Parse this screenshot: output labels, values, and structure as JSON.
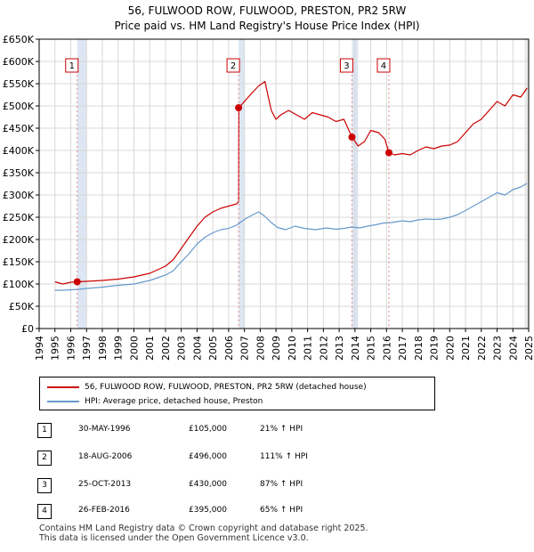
{
  "chart_data": {
    "type": "line",
    "title": "56, FULWOOD ROW, FULWOOD, PRESTON, PR2 5RW",
    "subtitle": "Price paid vs. HM Land Registry's House Price Index (HPI)",
    "xlim": [
      1994,
      2025
    ],
    "ylim": [
      0,
      650000
    ],
    "x_ticks": [
      1994,
      1995,
      1996,
      1997,
      1998,
      1999,
      2000,
      2001,
      2002,
      2003,
      2004,
      2005,
      2006,
      2007,
      2008,
      2009,
      2010,
      2011,
      2012,
      2013,
      2014,
      2015,
      2016,
      2017,
      2018,
      2019,
      2020,
      2021,
      2022,
      2023,
      2024,
      2025
    ],
    "x_tick_labels": [
      "1994",
      "1995",
      "1996",
      "1997",
      "1998",
      "1999",
      "2000",
      "2001",
      "2002",
      "2003",
      "2004",
      "2005",
      "2006",
      "2007",
      "2008",
      "2009",
      "2010",
      "2011",
      "2012",
      "2013",
      "2014",
      "2015",
      "2016",
      "2017",
      "2018",
      "2019",
      "2020",
      "2021",
      "2022",
      "2023",
      "2024",
      "2025"
    ],
    "y_ticks": [
      0,
      50000,
      100000,
      150000,
      200000,
      250000,
      300000,
      350000,
      400000,
      450000,
      500000,
      550000,
      600000,
      650000
    ],
    "y_tick_labels": [
      "£0",
      "£50K",
      "£100K",
      "£150K",
      "£200K",
      "£250K",
      "£300K",
      "£350K",
      "£400K",
      "£450K",
      "£500K",
      "£550K",
      "£600K",
      "£650K"
    ],
    "grid": true,
    "colors": {
      "property": "#cc0000",
      "hpi": "#6699cc",
      "shade": "#dde6f2",
      "marker_line": "#e07070"
    },
    "series": [
      {
        "name": "56, FULWOOD ROW, FULWOOD, PRESTON, PR2 5RW (detached house)",
        "color": "#cc0000",
        "x": [
          1995.0,
          1995.5,
          1996.0,
          1996.41,
          1997.0,
          1998.0,
          1999.0,
          2000.0,
          2001.0,
          2002.0,
          2002.5,
          2003.0,
          2003.5,
          2004.0,
          2004.5,
          2005.0,
          2005.5,
          2006.0,
          2006.5,
          2006.63,
          2006.65,
          2007.0,
          2007.5,
          2007.9,
          2008.3,
          2008.7,
          2009.0,
          2009.3,
          2009.8,
          2010.3,
          2010.8,
          2011.3,
          2011.8,
          2012.3,
          2012.8,
          2013.3,
          2013.81,
          2014.2,
          2014.6,
          2015.0,
          2015.5,
          2015.9,
          2016.15,
          2016.5,
          2017.0,
          2017.5,
          2018.0,
          2018.5,
          2019.0,
          2019.5,
          2020.0,
          2020.5,
          2021.0,
          2021.5,
          2022.0,
          2022.5,
          2023.0,
          2023.5,
          2024.0,
          2024.5,
          2024.9
        ],
        "values": [
          105000,
          100000,
          104000,
          105000,
          106000,
          108000,
          111000,
          116000,
          124000,
          140000,
          155000,
          180000,
          205000,
          230000,
          250000,
          262000,
          270000,
          275000,
          280000,
          285000,
          496000,
          510000,
          530000,
          545000,
          555000,
          490000,
          470000,
          480000,
          490000,
          480000,
          470000,
          485000,
          480000,
          475000,
          465000,
          470000,
          430000,
          410000,
          420000,
          445000,
          440000,
          425000,
          395000,
          390000,
          393000,
          390000,
          400000,
          408000,
          404000,
          410000,
          412000,
          420000,
          440000,
          460000,
          470000,
          490000,
          510000,
          500000,
          525000,
          520000,
          540000
        ]
      },
      {
        "name": "HPI: Average price, detached house, Preston",
        "color": "#6699cc",
        "x": [
          1995.0,
          1995.5,
          1996.0,
          1996.5,
          1997.0,
          1998.0,
          1999.0,
          2000.0,
          2001.0,
          2002.0,
          2002.5,
          2003.0,
          2003.5,
          2004.0,
          2004.5,
          2005.0,
          2005.5,
          2006.0,
          2006.5,
          2007.0,
          2007.5,
          2007.9,
          2008.3,
          2008.7,
          2009.1,
          2009.6,
          2010.2,
          2010.8,
          2011.5,
          2012.2,
          2012.8,
          2013.3,
          2013.8,
          2014.3,
          2014.8,
          2015.3,
          2015.8,
          2016.3,
          2017.0,
          2017.5,
          2018.0,
          2018.5,
          2019.0,
          2019.5,
          2020.0,
          2020.5,
          2021.0,
          2021.5,
          2022.0,
          2022.5,
          2023.0,
          2023.5,
          2024.0,
          2024.5,
          2024.9
        ],
        "values": [
          86000,
          86000,
          87000,
          88000,
          90000,
          93000,
          97000,
          100000,
          108000,
          120000,
          130000,
          150000,
          168000,
          190000,
          205000,
          215000,
          222000,
          225000,
          232000,
          245000,
          255000,
          262000,
          252000,
          238000,
          227000,
          222000,
          230000,
          225000,
          222000,
          226000,
          223000,
          225000,
          228000,
          226000,
          230000,
          233000,
          237000,
          238000,
          242000,
          240000,
          244000,
          246000,
          245000,
          246000,
          250000,
          256000,
          265000,
          275000,
          285000,
          295000,
          305000,
          300000,
          312000,
          318000,
          326000
        ]
      }
    ],
    "sales": [
      {
        "label": "1",
        "x": 1996.41,
        "value": 105000
      },
      {
        "label": "2",
        "x": 2006.63,
        "value": 496000
      },
      {
        "label": "3",
        "x": 2013.81,
        "value": 430000
      },
      {
        "label": "4",
        "x": 2016.15,
        "value": 395000
      }
    ],
    "shaded_periods": [
      [
        1996.41,
        1997.0
      ],
      [
        2006.63,
        2007.0
      ],
      [
        2013.81,
        2014.2
      ],
      [
        2016.15,
        2016.15
      ]
    ]
  },
  "legend": {
    "property_label": "56, FULWOOD ROW, FULWOOD, PRESTON, PR2 5RW (detached house)",
    "hpi_label": "HPI: Average price, detached house, Preston"
  },
  "sales_table": [
    {
      "num": "1",
      "date": "30-MAY-1996",
      "price": "£105,000",
      "hpi": "21% ↑ HPI"
    },
    {
      "num": "2",
      "date": "18-AUG-2006",
      "price": "£496,000",
      "hpi": "111% ↑ HPI"
    },
    {
      "num": "3",
      "date": "25-OCT-2013",
      "price": "£430,000",
      "hpi": "87% ↑ HPI"
    },
    {
      "num": "4",
      "date": "26-FEB-2016",
      "price": "£395,000",
      "hpi": "65% ↑ HPI"
    }
  ],
  "footer": {
    "line1": "Contains HM Land Registry data © Crown copyright and database right 2025.",
    "line2": "This data is licensed under the Open Government Licence v3.0."
  }
}
